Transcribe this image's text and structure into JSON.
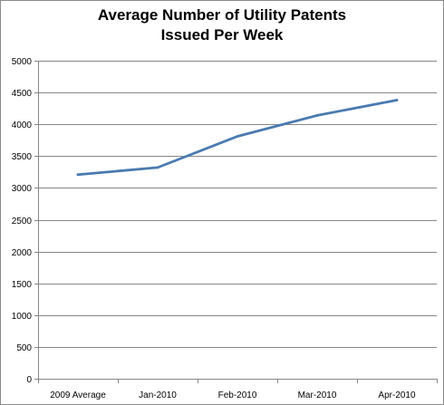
{
  "chart_data": {
    "type": "line",
    "title_lines": [
      "Average Number of Utility Patents",
      "Issued Per Week"
    ],
    "categories": [
      "2009 Average",
      "Jan-2010",
      "Feb-2010",
      "Mar-2010",
      "Apr-2010"
    ],
    "series": [
      {
        "values": [
          3210,
          3320,
          3810,
          4140,
          4380
        ]
      }
    ],
    "ylim": [
      0,
      5000
    ],
    "yticks": [
      0,
      500,
      1000,
      1500,
      2000,
      2500,
      3000,
      3500,
      4000,
      4500,
      5000
    ],
    "grid": true,
    "legend": "none",
    "line_color": "#4a7ab0",
    "grid_color": "#878787",
    "axis_color": "#878787"
  }
}
